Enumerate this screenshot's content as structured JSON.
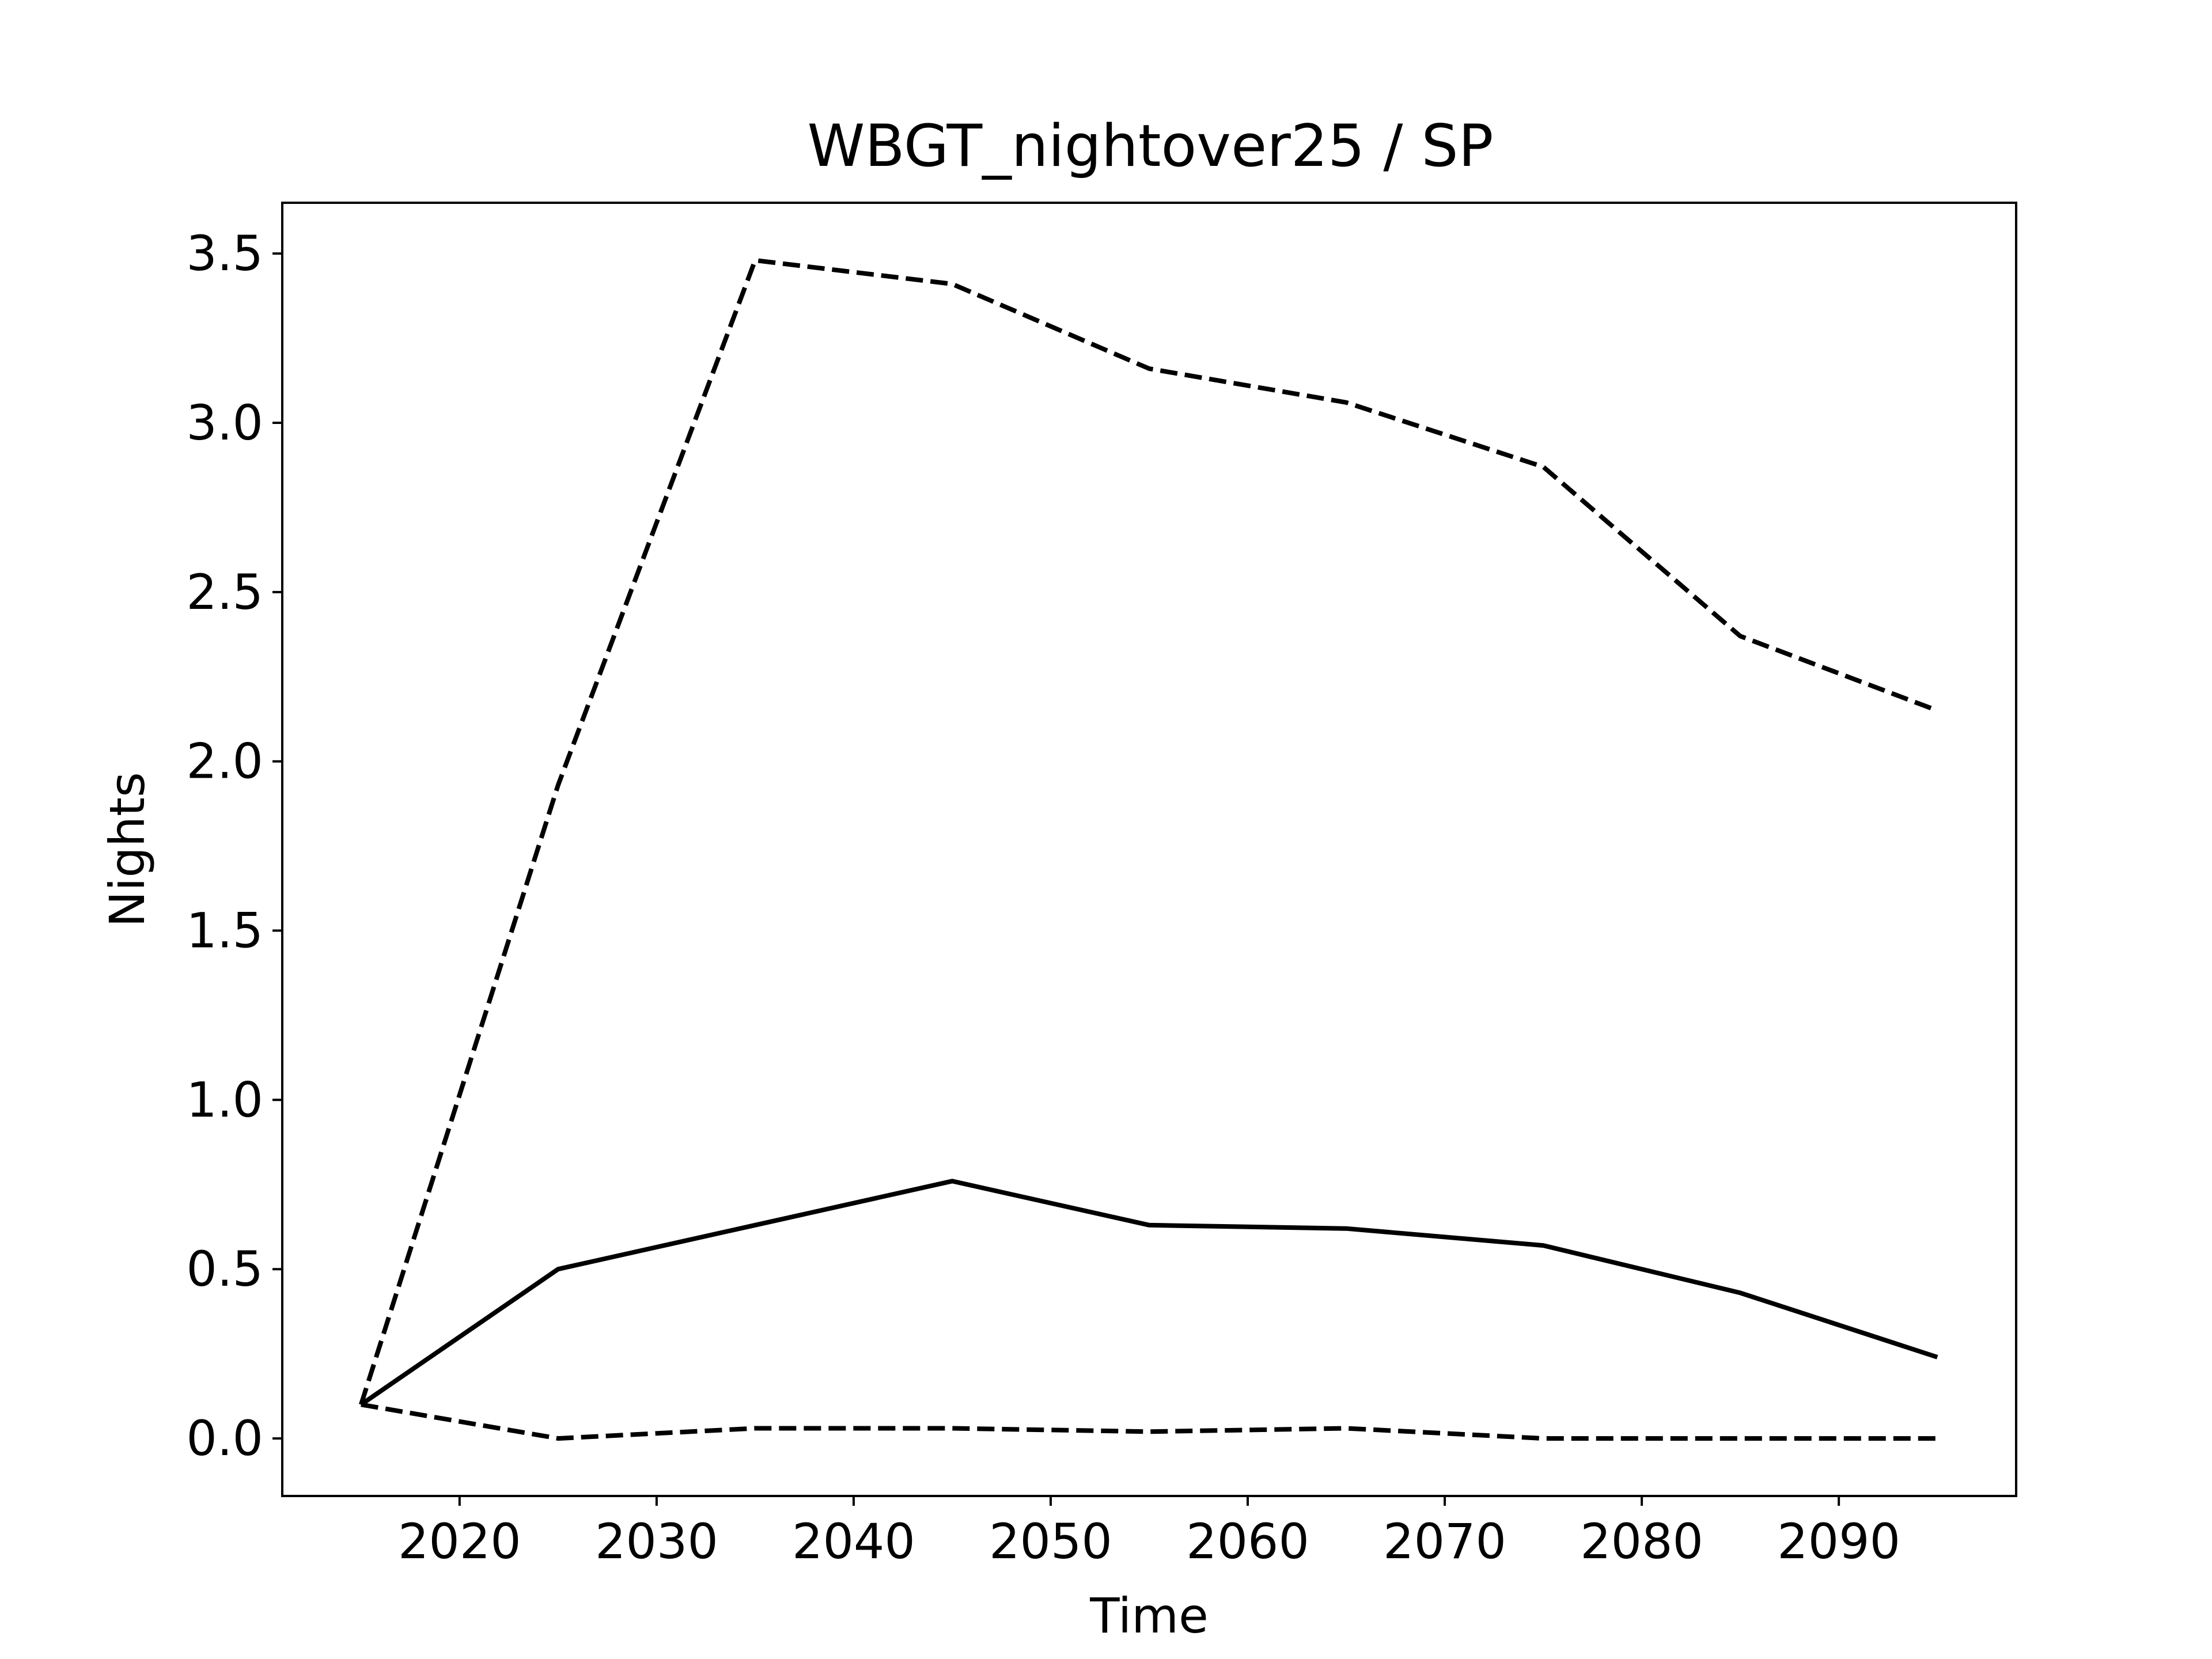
{
  "chart_data": {
    "type": "line",
    "title": "WBGT_nightover25 / SP",
    "xlabel": "Time",
    "ylabel": "Nights",
    "xlim": [
      2011,
      2099
    ],
    "ylim": [
      -0.17,
      3.65
    ],
    "x_ticks": [
      2020,
      2030,
      2040,
      2050,
      2060,
      2070,
      2080,
      2090
    ],
    "y_ticks": [
      0.0,
      0.5,
      1.0,
      1.5,
      2.0,
      2.5,
      3.0,
      3.5
    ],
    "y_tick_labels": [
      "0.0",
      "0.5",
      "1.0",
      "1.5",
      "2.0",
      "2.5",
      "3.0",
      "3.5"
    ],
    "grid": false,
    "legend": "none",
    "x": [
      2015,
      2025,
      2035,
      2045,
      2055,
      2065,
      2075,
      2085,
      2095
    ],
    "series": [
      {
        "style": "dashed",
        "color": "#000000",
        "values": [
          0.1,
          1.93,
          3.48,
          3.41,
          3.16,
          3.06,
          2.87,
          2.37,
          2.15
        ]
      },
      {
        "style": "solid",
        "color": "#000000",
        "values": [
          0.1,
          0.5,
          0.63,
          0.76,
          0.63,
          0.62,
          0.57,
          0.43,
          0.24
        ]
      },
      {
        "style": "dashed",
        "color": "#000000",
        "values": [
          0.1,
          0.0,
          0.03,
          0.03,
          0.02,
          0.03,
          0.0,
          0.0,
          0.0
        ]
      }
    ]
  }
}
